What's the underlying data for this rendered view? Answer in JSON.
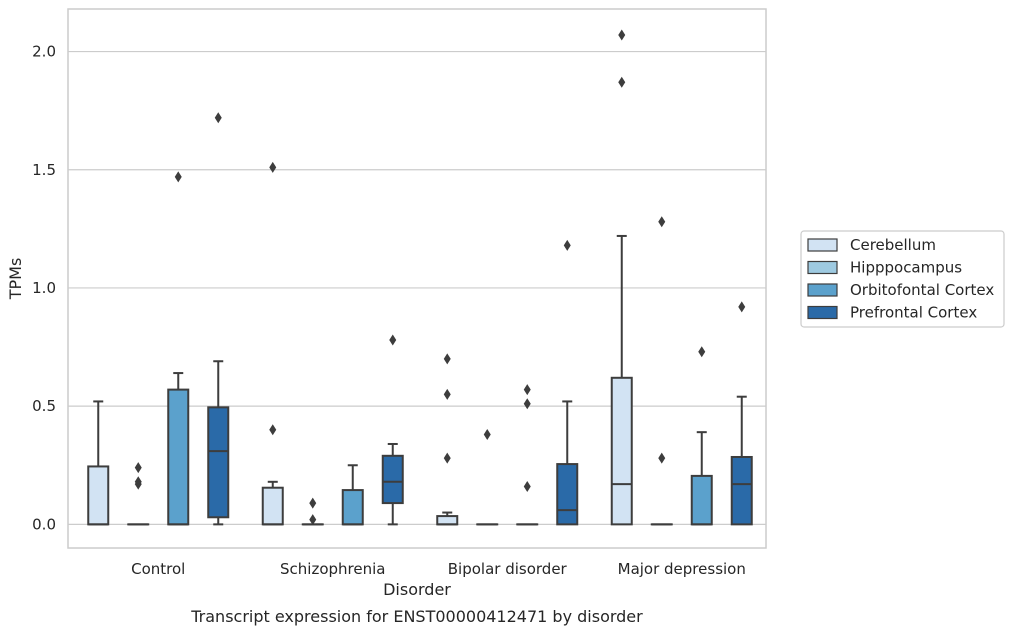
{
  "chart_data": {
    "type": "box",
    "caption": "Transcript expression for ENST00000412471 by disorder",
    "xlabel": "Disorder",
    "ylabel": "TPMs",
    "ylim": [
      -0.1,
      2.18
    ],
    "yticks": [
      "0.0",
      "0.5",
      "1.0",
      "1.5",
      "2.0"
    ],
    "grid": "horizontal",
    "legend_position": "right",
    "categories": [
      "Control",
      "Schizophrenia",
      "Bipolar disorder",
      "Major depression"
    ],
    "series": [
      {
        "name": "Cerebellum",
        "color": "#d2e3f3",
        "boxes": [
          {
            "whislo": 0,
            "q1": 0,
            "med": 0,
            "q3": 0.245,
            "whishi": 0.52,
            "fliers": []
          },
          {
            "whislo": 0,
            "q1": 0,
            "med": 0,
            "q3": 0.155,
            "whishi": 0.18,
            "fliers": [
              0.4,
              1.51
            ]
          },
          {
            "whislo": 0,
            "q1": 0,
            "med": 0,
            "q3": 0.035,
            "whishi": 0.05,
            "fliers": [
              0.28,
              0.55,
              0.7
            ]
          },
          {
            "whislo": 0,
            "q1": 0,
            "med": 0.17,
            "q3": 0.62,
            "whishi": 1.22,
            "fliers": [
              1.87,
              2.07
            ]
          }
        ]
      },
      {
        "name": "Hipppocampus",
        "color": "#9ecae1",
        "boxes": [
          {
            "whislo": 0,
            "q1": 0,
            "med": 0,
            "q3": 0,
            "whishi": 0,
            "fliers": [
              0.17,
              0.18,
              0.24
            ]
          },
          {
            "whislo": 0,
            "q1": 0,
            "med": 0,
            "q3": 0,
            "whishi": 0,
            "fliers": [
              0.02,
              0.09
            ]
          },
          {
            "whislo": 0,
            "q1": 0,
            "med": 0,
            "q3": 0,
            "whishi": 0,
            "fliers": [
              0.38
            ]
          },
          {
            "whislo": 0,
            "q1": 0,
            "med": 0,
            "q3": 0,
            "whishi": 0,
            "fliers": [
              0.28,
              1.28
            ]
          }
        ]
      },
      {
        "name": "Orbitofontal Cortex",
        "color": "#5ba1cc",
        "boxes": [
          {
            "whislo": 0,
            "q1": 0,
            "med": 0,
            "q3": 0.57,
            "whishi": 0.64,
            "fliers": [
              1.47
            ]
          },
          {
            "whislo": 0,
            "q1": 0,
            "med": 0,
            "q3": 0.145,
            "whishi": 0.25,
            "fliers": []
          },
          {
            "whislo": 0,
            "q1": 0,
            "med": 0,
            "q3": 0,
            "whishi": 0,
            "fliers": [
              0.16,
              0.51,
              0.57
            ]
          },
          {
            "whislo": 0,
            "q1": 0,
            "med": 0,
            "q3": 0.205,
            "whishi": 0.39,
            "fliers": [
              0.73
            ]
          }
        ]
      },
      {
        "name": "Prefrontal Cortex",
        "color": "#2a6aa8",
        "boxes": [
          {
            "whislo": 0,
            "q1": 0.03,
            "med": 0.31,
            "q3": 0.495,
            "whishi": 0.69,
            "fliers": [
              1.72
            ]
          },
          {
            "whislo": 0,
            "q1": 0.09,
            "med": 0.18,
            "q3": 0.29,
            "whishi": 0.34,
            "fliers": [
              0.78
            ]
          },
          {
            "whislo": 0,
            "q1": 0,
            "med": 0.06,
            "q3": 0.255,
            "whishi": 0.52,
            "fliers": [
              1.18
            ]
          },
          {
            "whislo": 0,
            "q1": 0,
            "med": 0.17,
            "q3": 0.285,
            "whishi": 0.54,
            "fliers": [
              0.92
            ]
          }
        ]
      }
    ]
  }
}
